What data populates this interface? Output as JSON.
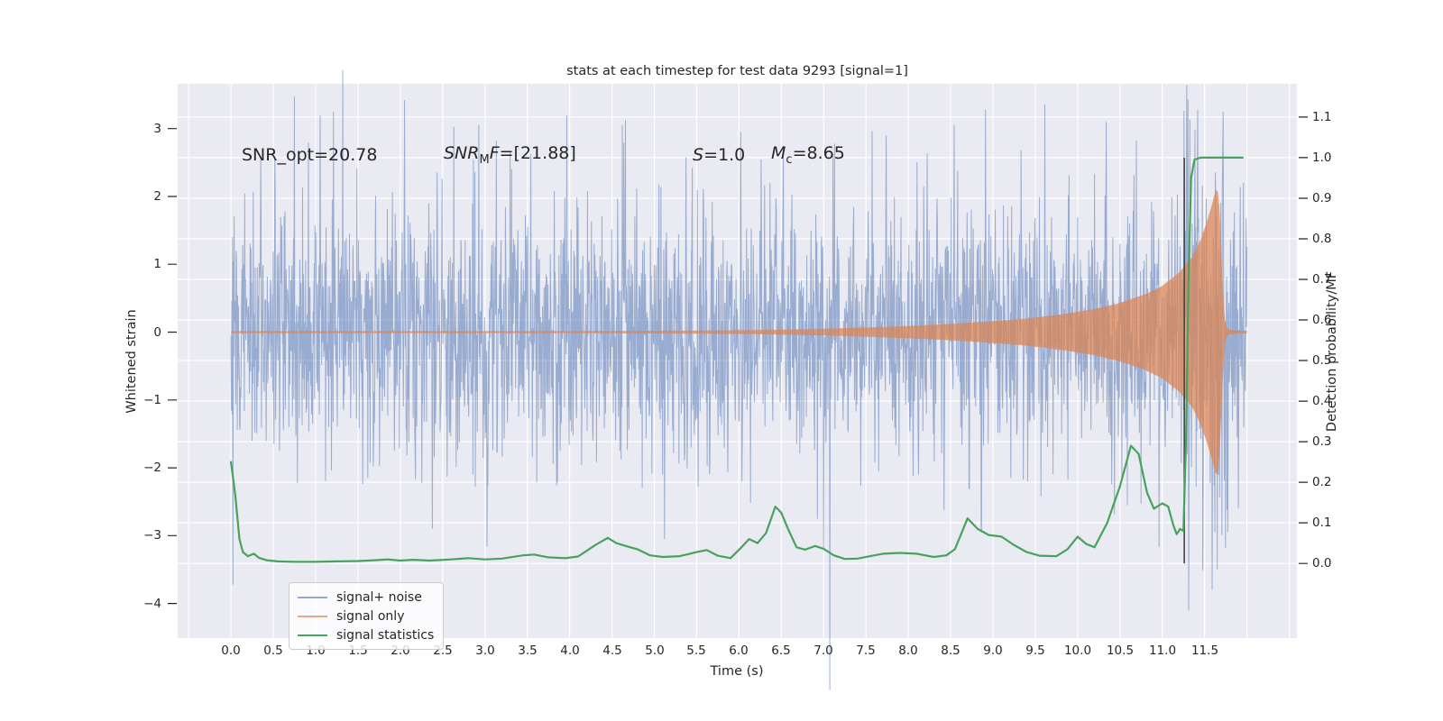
{
  "title": "stats at each timestep for test data 9293 [signal=1]",
  "axes": {
    "xlabel": "Time (s)",
    "ylabel_left": "Whitened strain",
    "ylabel_right": "Detection probability/MF"
  },
  "annotations": {
    "snr_opt": "SNR_opt=20.78",
    "snr_mf": {
      "it1": "SNR",
      "sub": "M",
      "it2": "F",
      "rest": "=[21.88]"
    },
    "s": {
      "it1": "S",
      "rest": "=1.0"
    },
    "mc": {
      "it1": "M",
      "sub": "c",
      "rest": "=8.65"
    }
  },
  "legend": {
    "items": [
      {
        "label": "signal+ noise",
        "swatch_color": "rgba(76,114,176,0.6)"
      },
      {
        "label": "signal only",
        "swatch_color": "rgba(221,132,82,0.7)"
      },
      {
        "label": "signal statistics",
        "swatch_color": "#48a25e"
      }
    ]
  },
  "chart_data": {
    "type": "line",
    "xlabel": "Time (s)",
    "xlim": [
      -0.63,
      12.59
    ],
    "xticks": [
      0.0,
      0.5,
      1.0,
      1.5,
      2.0,
      2.5,
      3.0,
      3.5,
      4.0,
      4.5,
      5.0,
      5.5,
      6.0,
      6.5,
      7.0,
      7.5,
      8.0,
      8.5,
      9.0,
      9.5,
      10.0,
      10.5,
      11.0,
      11.5
    ],
    "ylim_left": [
      -4.51,
      3.66
    ],
    "yticks_left": [
      3,
      2,
      1,
      0,
      -1,
      -2,
      -3,
      -4
    ],
    "ylim_right": [
      -0.184,
      1.182
    ],
    "yticks_right": [
      1.1,
      1.0,
      0.9,
      0.8,
      0.7,
      0.6,
      0.5,
      0.4,
      0.3,
      0.2,
      0.1,
      0.0
    ],
    "grid": {
      "on": true,
      "color": "#ffffff",
      "x_step": 0.5,
      "y_right_step": 0.1
    },
    "background_color": "#eaeaf2",
    "text_color": "#262626",
    "series": [
      {
        "name": "signal+ noise",
        "kind": "noise",
        "color": "rgba(76,114,176,0.52)",
        "t_range": [
          0,
          12
        ],
        "n_points": 2600,
        "seed": 9293,
        "sigma_core": 0.9,
        "sigma_tail": 1.5,
        "tail_fraction": 0.08,
        "merger_boost": {
          "t0": 11.25,
          "t1": 11.78,
          "factor": 1.5
        },
        "spikes": [
          [
            1.21,
            3.25
          ],
          [
            2.38,
            -2.9
          ],
          [
            4.62,
            3.05
          ],
          [
            5.12,
            -3.05
          ],
          [
            6.02,
            2.95
          ],
          [
            7.0,
            -3.2
          ],
          [
            7.74,
            2.9
          ],
          [
            8.91,
            3.28
          ],
          [
            10.34,
            3.1
          ],
          [
            10.96,
            -3.17
          ],
          [
            11.31,
            -4.1
          ],
          [
            11.42,
            3.28
          ],
          [
            11.59,
            -3.8
          ],
          [
            11.72,
            3.25
          ],
          [
            11.9,
            -2.6
          ]
        ]
      },
      {
        "name": "signal only",
        "kind": "chirp_envelope",
        "color": "rgba(221,132,82,0.72)",
        "envelope": [
          [
            0,
            0.01
          ],
          [
            2,
            0.01
          ],
          [
            4,
            0.014
          ],
          [
            5,
            0.02
          ],
          [
            6,
            0.028
          ],
          [
            6.5,
            0.036
          ],
          [
            7,
            0.05
          ],
          [
            7.5,
            0.068
          ],
          [
            8,
            0.09
          ],
          [
            8.5,
            0.12
          ],
          [
            9,
            0.16
          ],
          [
            9.4,
            0.2
          ],
          [
            9.8,
            0.26
          ],
          [
            10.2,
            0.34
          ],
          [
            10.5,
            0.43
          ],
          [
            10.8,
            0.56
          ],
          [
            11.0,
            0.68
          ],
          [
            11.2,
            0.88
          ],
          [
            11.35,
            1.1
          ],
          [
            11.45,
            1.35
          ],
          [
            11.52,
            1.6
          ],
          [
            11.58,
            1.85
          ],
          [
            11.62,
            2.05
          ],
          [
            11.65,
            2.12
          ],
          [
            11.67,
            1.95
          ],
          [
            11.69,
            1.45
          ],
          [
            11.71,
            0.8
          ],
          [
            11.73,
            0.3
          ],
          [
            11.75,
            0.1
          ],
          [
            11.78,
            0.04
          ],
          [
            11.85,
            0.025
          ],
          [
            12,
            0.02
          ]
        ]
      },
      {
        "name": "signal statistics",
        "kind": "line_right_axis",
        "color": "#48a25e",
        "points": [
          [
            0.0,
            0.25
          ],
          [
            0.05,
            0.17
          ],
          [
            0.1,
            0.06
          ],
          [
            0.14,
            0.028
          ],
          [
            0.2,
            0.018
          ],
          [
            0.27,
            0.024
          ],
          [
            0.33,
            0.014
          ],
          [
            0.42,
            0.008
          ],
          [
            0.55,
            0.005
          ],
          [
            0.75,
            0.004
          ],
          [
            1.0,
            0.004
          ],
          [
            1.25,
            0.005
          ],
          [
            1.5,
            0.006
          ],
          [
            1.7,
            0.008
          ],
          [
            1.85,
            0.01
          ],
          [
            2.0,
            0.007
          ],
          [
            2.15,
            0.009
          ],
          [
            2.35,
            0.007
          ],
          [
            2.6,
            0.01
          ],
          [
            2.8,
            0.013
          ],
          [
            3.0,
            0.01
          ],
          [
            3.2,
            0.012
          ],
          [
            3.45,
            0.02
          ],
          [
            3.58,
            0.022
          ],
          [
            3.75,
            0.015
          ],
          [
            3.95,
            0.013
          ],
          [
            4.1,
            0.017
          ],
          [
            4.3,
            0.045
          ],
          [
            4.45,
            0.063
          ],
          [
            4.55,
            0.05
          ],
          [
            4.68,
            0.042
          ],
          [
            4.8,
            0.035
          ],
          [
            4.95,
            0.02
          ],
          [
            5.1,
            0.016
          ],
          [
            5.3,
            0.018
          ],
          [
            5.5,
            0.028
          ],
          [
            5.62,
            0.033
          ],
          [
            5.75,
            0.019
          ],
          [
            5.9,
            0.013
          ],
          [
            6.02,
            0.038
          ],
          [
            6.12,
            0.06
          ],
          [
            6.22,
            0.05
          ],
          [
            6.32,
            0.075
          ],
          [
            6.43,
            0.14
          ],
          [
            6.5,
            0.125
          ],
          [
            6.58,
            0.085
          ],
          [
            6.68,
            0.04
          ],
          [
            6.78,
            0.034
          ],
          [
            6.9,
            0.043
          ],
          [
            7.0,
            0.036
          ],
          [
            7.12,
            0.02
          ],
          [
            7.25,
            0.011
          ],
          [
            7.4,
            0.012
          ],
          [
            7.55,
            0.018
          ],
          [
            7.7,
            0.024
          ],
          [
            7.9,
            0.026
          ],
          [
            8.1,
            0.024
          ],
          [
            8.3,
            0.016
          ],
          [
            8.45,
            0.02
          ],
          [
            8.55,
            0.035
          ],
          [
            8.7,
            0.111
          ],
          [
            8.82,
            0.085
          ],
          [
            8.95,
            0.07
          ],
          [
            9.1,
            0.066
          ],
          [
            9.25,
            0.045
          ],
          [
            9.4,
            0.028
          ],
          [
            9.55,
            0.019
          ],
          [
            9.75,
            0.018
          ],
          [
            9.88,
            0.035
          ],
          [
            10.0,
            0.066
          ],
          [
            10.1,
            0.048
          ],
          [
            10.2,
            0.04
          ],
          [
            10.35,
            0.1
          ],
          [
            10.5,
            0.19
          ],
          [
            10.63,
            0.29
          ],
          [
            10.72,
            0.27
          ],
          [
            10.82,
            0.175
          ],
          [
            10.9,
            0.135
          ],
          [
            11.0,
            0.148
          ],
          [
            11.07,
            0.14
          ],
          [
            11.13,
            0.095
          ],
          [
            11.17,
            0.072
          ],
          [
            11.21,
            0.085
          ],
          [
            11.25,
            0.08
          ],
          [
            11.28,
            0.3
          ],
          [
            11.31,
            0.7
          ],
          [
            11.34,
            0.95
          ],
          [
            11.38,
            0.995
          ],
          [
            11.45,
            1.0
          ],
          [
            11.6,
            1.0
          ],
          [
            11.8,
            1.0
          ],
          [
            11.95,
            1.0
          ]
        ]
      }
    ],
    "vline": {
      "t": 11.26,
      "p_from": 0.0,
      "p_to": 1.0,
      "color": "#45443f"
    }
  }
}
